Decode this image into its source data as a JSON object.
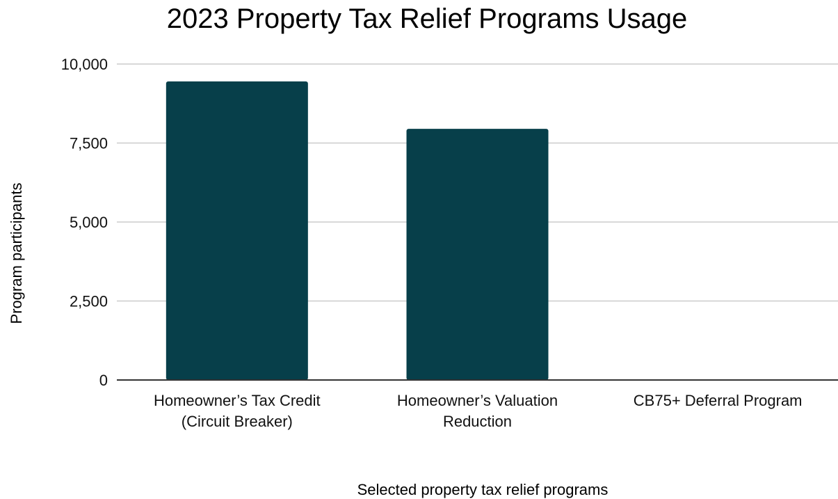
{
  "chart_data": {
    "type": "bar",
    "title": "2023 Property Tax Relief Programs Usage",
    "xlabel": "Selected property tax relief programs",
    "ylabel": "Program participants",
    "categories": [
      [
        "Homeowner’s Tax Credit",
        "(Circuit Breaker)"
      ],
      [
        "Homeowner’s Valuation",
        "Reduction"
      ],
      [
        "CB75+ Deferral Program"
      ]
    ],
    "values": [
      9450,
      7950,
      0
    ],
    "ylim": [
      0,
      10000
    ],
    "yticks": [
      0,
      2500,
      5000,
      7500,
      10000
    ],
    "ytick_labels": [
      "0",
      "2,500",
      "5,000",
      "7,500",
      "10,000"
    ],
    "grid": true,
    "legend": "none",
    "colors": {
      "bar": "#073f4a",
      "grid": "#cccccc",
      "axis": "#333333"
    }
  }
}
